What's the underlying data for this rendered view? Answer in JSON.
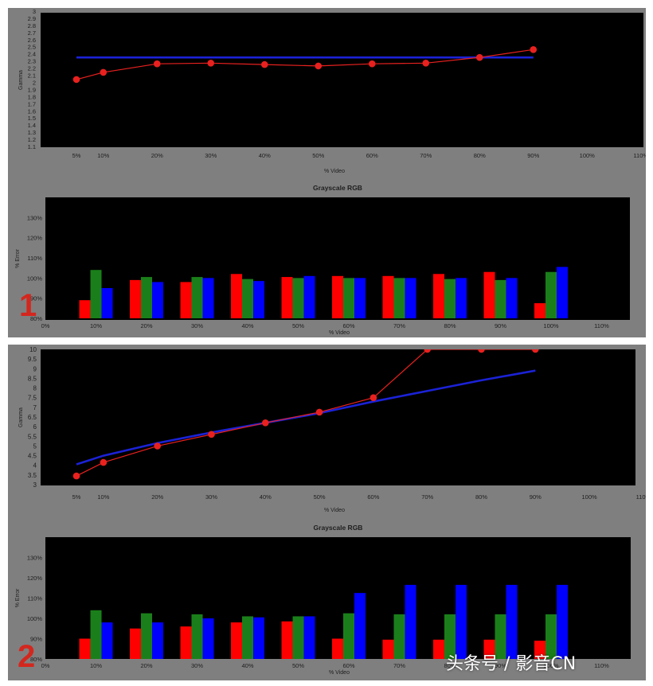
{
  "watermark": "头条号 / 影音CN",
  "colors": {
    "panel_bg": "#7f7f7f",
    "plot_bg": "#000000",
    "target": "#1b22d6",
    "measured": "#e8211f",
    "red": "#ff0000",
    "green": "#1a7f1a",
    "blue": "#0000ff"
  },
  "chart_data": [
    {
      "panel": "1",
      "type": "line",
      "ylabel": "Gamma",
      "xlabel": "% Video",
      "x": [
        5,
        10,
        20,
        30,
        40,
        50,
        60,
        70,
        80,
        90
      ],
      "xticks": [
        "5%",
        "10%",
        "20%",
        "30%",
        "40%",
        "50%",
        "60%",
        "70%",
        "80%",
        "90%",
        "100%",
        "110%"
      ],
      "xtick_values": [
        5,
        10,
        20,
        30,
        40,
        50,
        60,
        70,
        80,
        90,
        100,
        110
      ],
      "ylim": [
        1.1,
        3.0
      ],
      "yticks": [
        "1.1",
        "1.2",
        "1.3",
        "1.4",
        "1.5",
        "1.6",
        "1.7",
        "1.8",
        "1.9",
        "2",
        "2.1",
        "2.2",
        "2.3",
        "2.4",
        "2.5",
        "2.6",
        "2.7",
        "2.8",
        "2.9",
        "3"
      ],
      "series": [
        {
          "values": [
            2.35,
            2.35,
            2.35,
            2.35,
            2.35,
            2.35,
            2.35,
            2.35,
            2.35,
            2.35
          ],
          "color": "#1b22d6",
          "markers": false
        },
        {
          "values": [
            2.04,
            2.14,
            2.26,
            2.27,
            2.25,
            2.23,
            2.26,
            2.27,
            2.35,
            2.46
          ],
          "color": "#e8211f",
          "markers": true
        }
      ]
    },
    {
      "panel": "1",
      "type": "bar",
      "title": "Grayscale RGB",
      "ylabel": "% Error",
      "xlabel": "% Video",
      "categories": [
        "10%",
        "20%",
        "30%",
        "40%",
        "50%",
        "60%",
        "70%",
        "80%",
        "90%",
        "100%"
      ],
      "x": [
        10,
        20,
        30,
        40,
        50,
        60,
        70,
        80,
        90,
        100
      ],
      "xticks": [
        "0%",
        "10%",
        "20%",
        "30%",
        "40%",
        "50%",
        "60%",
        "70%",
        "80%",
        "90%",
        "100%",
        "110%"
      ],
      "xtick_values": [
        0,
        10,
        20,
        30,
        40,
        50,
        60,
        70,
        80,
        90,
        100,
        110
      ],
      "ylim": [
        80,
        140
      ],
      "yticks": [
        "80%",
        "90%",
        "100%",
        "110%",
        "120%",
        "130%"
      ],
      "series": [
        {
          "values": [
            89,
            99,
            98,
            102,
            100.5,
            101,
            101,
            102,
            103,
            87.5
          ],
          "color": "#ff0000"
        },
        {
          "values": [
            104,
            100.5,
            100.5,
            99.5,
            100,
            100,
            100,
            99.5,
            99,
            103
          ],
          "color": "#1a7f1a"
        },
        {
          "values": [
            95,
            98,
            100,
            98.5,
            101,
            100,
            100,
            100,
            100,
            105.5
          ],
          "color": "#0000ff"
        }
      ]
    },
    {
      "panel": "2",
      "type": "line",
      "ylabel": "Gamma",
      "xlabel": "% Video",
      "x": [
        5,
        10,
        20,
        30,
        40,
        50,
        60,
        70,
        80,
        90
      ],
      "xticks": [
        "5%",
        "10%",
        "20%",
        "30%",
        "40%",
        "50%",
        "60%",
        "70%",
        "80%",
        "90%",
        "100%",
        "110%"
      ],
      "xtick_values": [
        5,
        10,
        20,
        30,
        40,
        50,
        60,
        70,
        80,
        90,
        100,
        110
      ],
      "ylim": [
        3,
        10
      ],
      "yticks": [
        "3",
        "3.5",
        "4",
        "4.5",
        "5",
        "5.5",
        "6",
        "6.5",
        "7",
        "7.5",
        "8",
        "8.5",
        "9",
        "9.5",
        "10"
      ],
      "series": [
        {
          "values": [
            4.05,
            4.5,
            5.15,
            5.7,
            6.2,
            6.7,
            7.3,
            7.85,
            8.4,
            8.9
          ],
          "color": "#1b22d6",
          "markers": false
        },
        {
          "values": [
            3.45,
            4.15,
            5.0,
            5.6,
            6.2,
            6.75,
            7.5,
            10,
            10,
            10
          ],
          "color": "#e8211f",
          "markers": true
        }
      ]
    },
    {
      "panel": "2",
      "type": "bar",
      "title": "Grayscale RGB",
      "ylabel": "% Error",
      "xlabel": "% Video",
      "categories": [
        "10%",
        "20%",
        "30%",
        "40%",
        "50%",
        "60%",
        "70%",
        "80%",
        "90%",
        "100%"
      ],
      "x": [
        10,
        20,
        30,
        40,
        50,
        60,
        70,
        80,
        90,
        100
      ],
      "xticks": [
        "0%",
        "10%",
        "20%",
        "30%",
        "40%",
        "50%",
        "60%",
        "70%",
        "80%",
        "90%",
        "100%",
        "110%"
      ],
      "xtick_values": [
        0,
        10,
        20,
        30,
        40,
        50,
        60,
        70,
        80,
        90,
        100,
        110
      ],
      "ylim": [
        80,
        140
      ],
      "yticks": [
        "80%",
        "90%",
        "100%",
        "110%",
        "120%",
        "130%"
      ],
      "series": [
        {
          "values": [
            90,
            95,
            96,
            98,
            98.5,
            90,
            89.5,
            89.5,
            89.5,
            89
          ],
          "color": "#ff0000"
        },
        {
          "values": [
            104,
            102.5,
            102,
            101,
            101,
            102.5,
            102,
            102,
            102,
            102
          ],
          "color": "#1a7f1a"
        },
        {
          "values": [
            98,
            98,
            100,
            100.5,
            101,
            112.5,
            116.5,
            116.5,
            116.5,
            116.5
          ],
          "color": "#0000ff"
        }
      ]
    }
  ]
}
